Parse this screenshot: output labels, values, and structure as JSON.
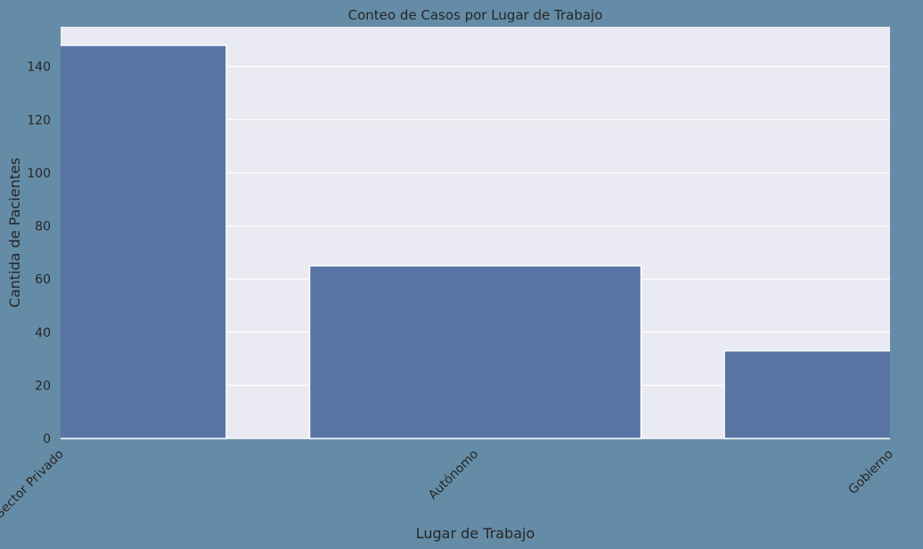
{
  "colors": {
    "figure_background": "#658CA6",
    "plot_background": "#EAEAF2",
    "grid": "#FFFFFF",
    "bar_fill": "#5875A4",
    "bar_edge": "#FFFFFF",
    "text": "#262626"
  },
  "chart_data": {
    "type": "bar",
    "title": "Conteo de Casos por Lugar de Trabajo",
    "xlabel": "Lugar de Trabajo",
    "ylabel": "Cantida de Pacientes",
    "categories": [
      "Sector Privado",
      "Autónomo",
      "Gobierno"
    ],
    "values": [
      148,
      65,
      33
    ],
    "ylim": [
      0,
      155
    ],
    "yticks": [
      0,
      20,
      40,
      60,
      80,
      100,
      120,
      140
    ],
    "grid": true,
    "legend": "none"
  }
}
